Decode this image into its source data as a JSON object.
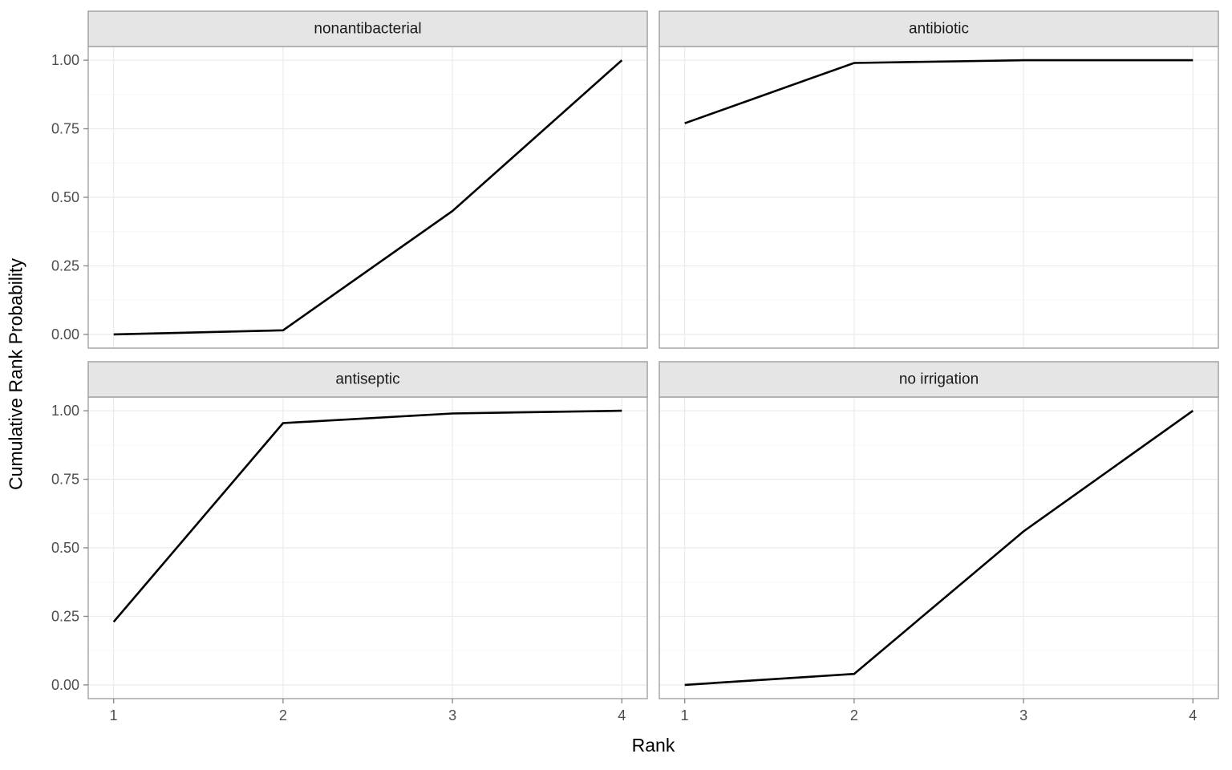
{
  "chart_data": {
    "type": "line",
    "faceted": true,
    "xlabel": "Rank",
    "ylabel": "Cumulative Rank Probability",
    "facets": [
      {
        "title": "nonantibacterial",
        "x": [
          1,
          2,
          3,
          4
        ],
        "y": [
          0.0,
          0.015,
          0.45,
          1.0
        ]
      },
      {
        "title": "antibiotic",
        "x": [
          1,
          2,
          3,
          4
        ],
        "y": [
          0.77,
          0.99,
          1.0,
          1.0
        ]
      },
      {
        "title": "antiseptic",
        "x": [
          1,
          2,
          3,
          4
        ],
        "y": [
          0.23,
          0.955,
          0.99,
          1.0
        ]
      },
      {
        "title": "no irrigation",
        "x": [
          1,
          2,
          3,
          4
        ],
        "y": [
          0.0,
          0.04,
          0.56,
          1.0
        ]
      }
    ],
    "x_ticks": [
      "1",
      "2",
      "3",
      "4"
    ],
    "y_ticks": [
      "0.00",
      "0.25",
      "0.50",
      "0.75",
      "1.00"
    ],
    "y_minor": [
      0.125,
      0.375,
      0.625,
      0.875
    ],
    "xlim": [
      0.85,
      4.15
    ],
    "ylim": [
      -0.05,
      1.05
    ],
    "grid": "horizontal major+minor, vertical major",
    "legend": "none",
    "colors": {
      "line": "#000000",
      "strip_fill": "#E5E5E5",
      "strip_border": "#A8A8A8",
      "panel_border": "#ADADAD",
      "grid_major": "#EBEBEB",
      "grid_minor": "#F6F6F6",
      "tick_label": "#4D4D4D",
      "tick_mark": "#8C8C8C",
      "axis_title": "#000000",
      "facet_title": "#1A1A1A",
      "background": "#FFFFFF"
    }
  }
}
